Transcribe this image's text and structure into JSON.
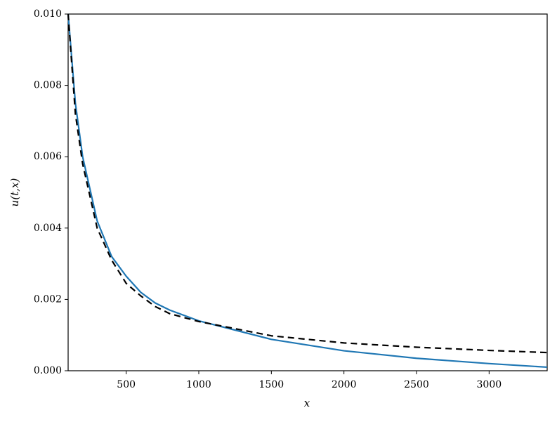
{
  "chart_data": {
    "type": "line",
    "xlabel": "x",
    "ylabel": "u(t,x)",
    "x": [
      100,
      150,
      200,
      300,
      400,
      500,
      600,
      700,
      800,
      1000,
      1500,
      2000,
      2500,
      3000,
      3400
    ],
    "series": [
      {
        "color": "#1f77b4",
        "dash": "solid",
        "values": [
          0.01,
          0.0075,
          0.006,
          0.0042,
          0.0032,
          0.00265,
          0.0022,
          0.0019,
          0.0017,
          0.0014,
          0.00088,
          0.00056,
          0.00035,
          0.0002,
          0.0001
        ]
      },
      {
        "color": "#000000",
        "dash": "dashed",
        "values": [
          0.01,
          0.0072,
          0.0058,
          0.004,
          0.0031,
          0.00245,
          0.0021,
          0.0018,
          0.0016,
          0.00138,
          0.00098,
          0.00078,
          0.00066,
          0.00057,
          0.00051
        ]
      }
    ],
    "xlim": [
      100,
      3400
    ],
    "xticks": [
      500,
      1000,
      1500,
      2000,
      2500,
      3000
    ],
    "ylim": [
      0,
      0.01
    ],
    "yticks": [
      {
        "value": 0,
        "label": "0.000"
      },
      {
        "value": 0.002,
        "label": "0.002"
      },
      {
        "value": 0.004,
        "label": "0.004"
      },
      {
        "value": 0.006,
        "label": "0.006"
      },
      {
        "value": 0.008,
        "label": "0.008"
      },
      {
        "value": 0.01,
        "label": "0.010"
      }
    ],
    "grid": false
  }
}
